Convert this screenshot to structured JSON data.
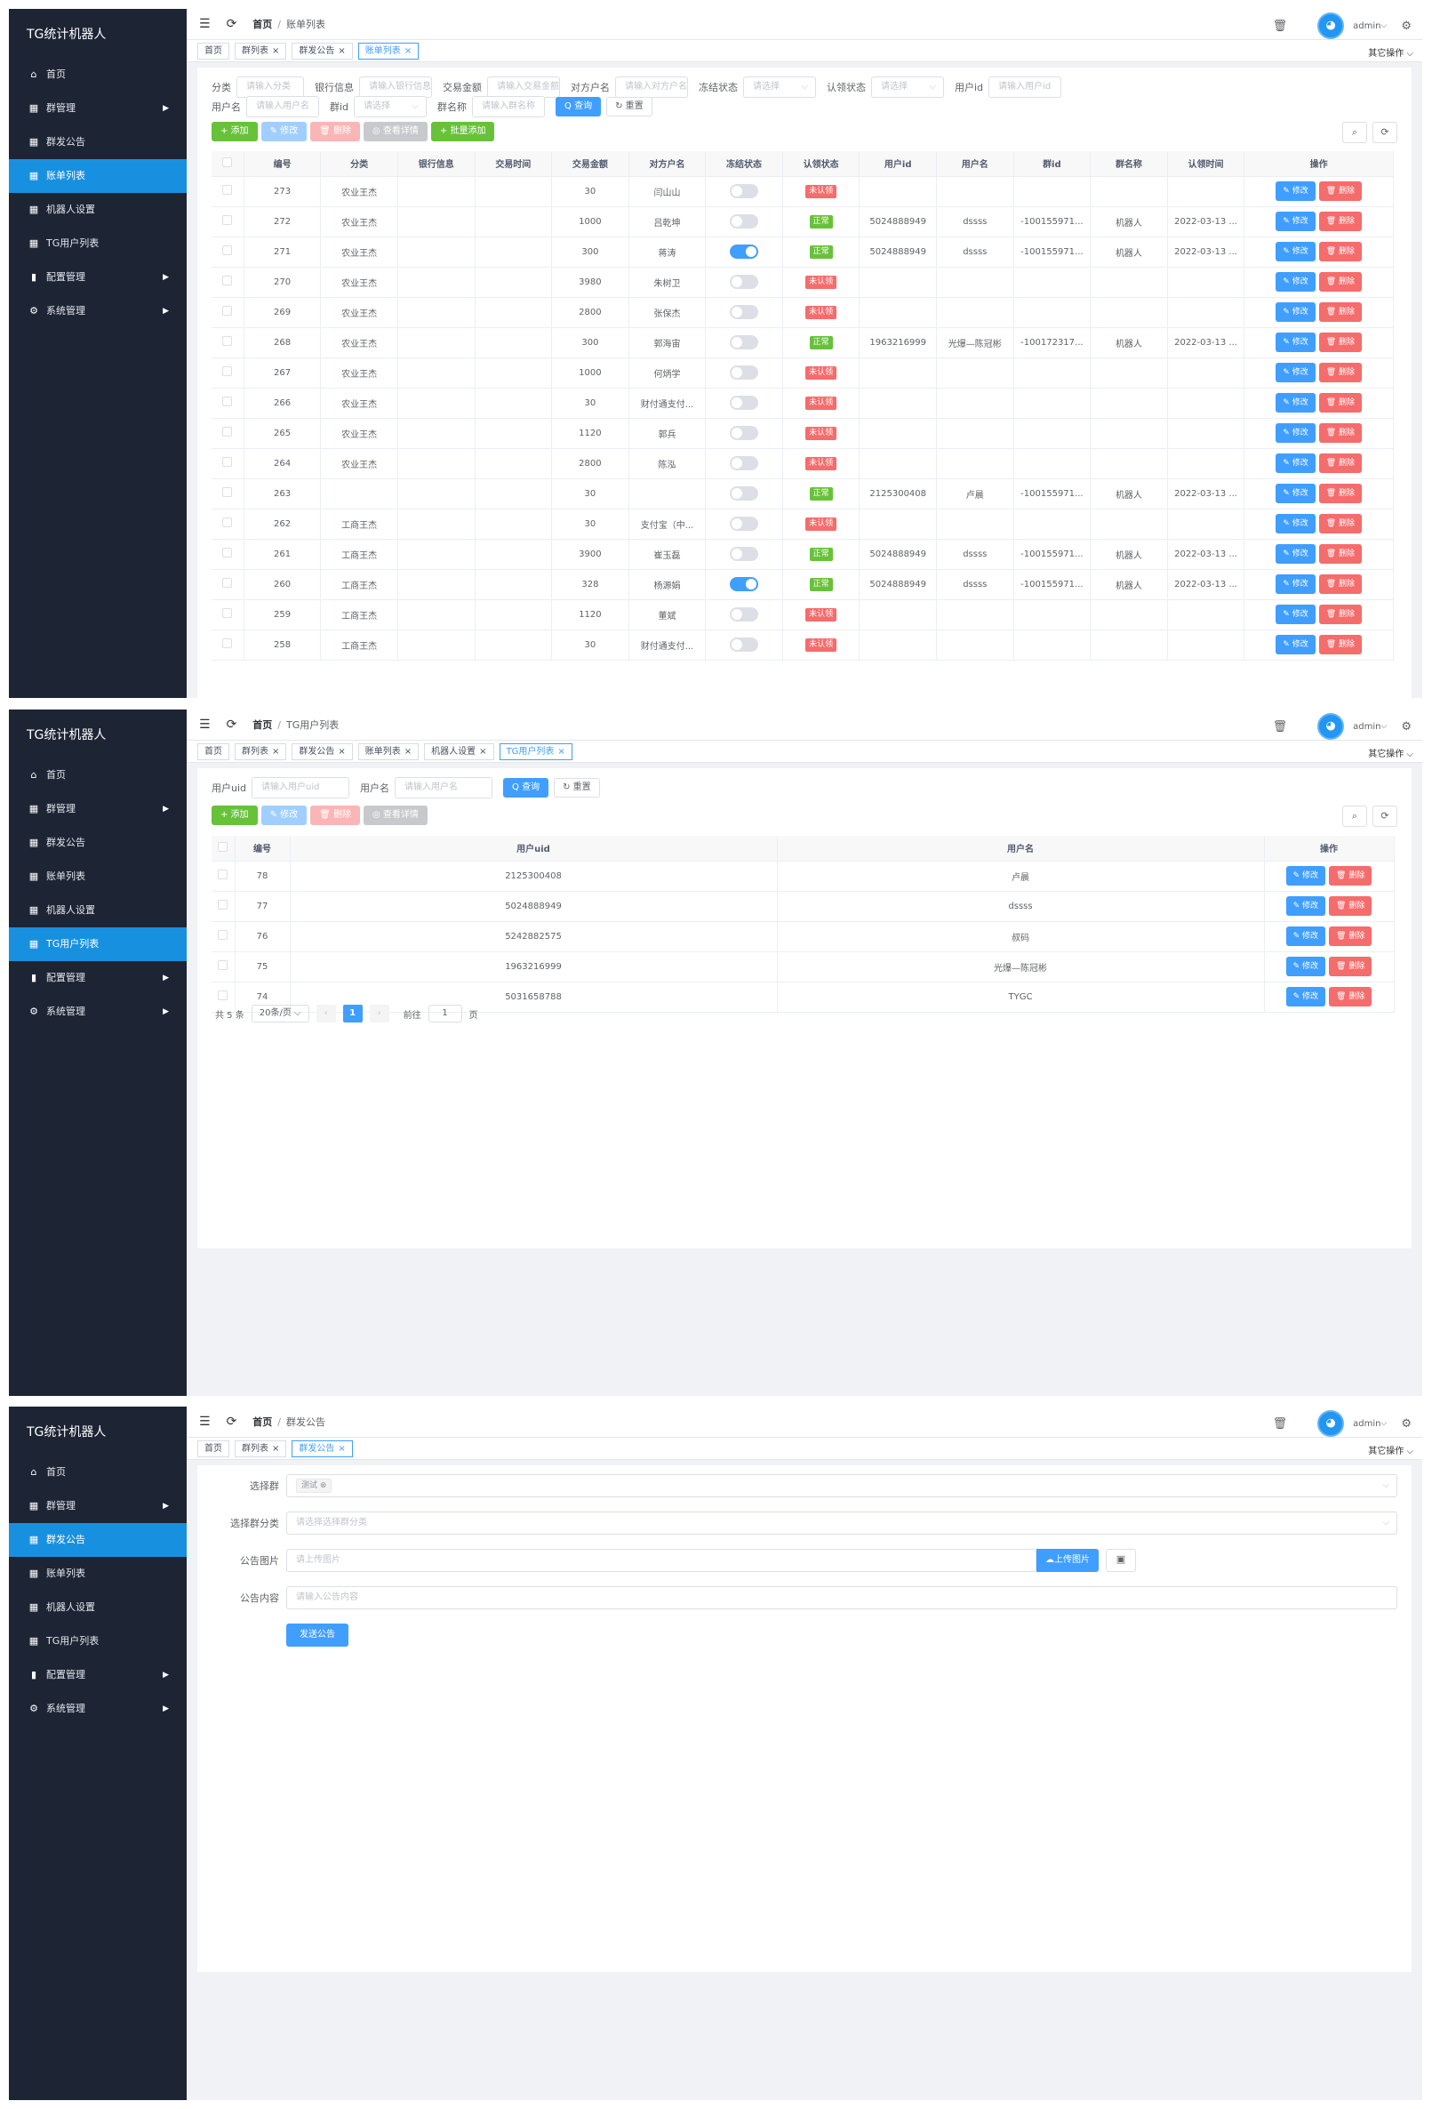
{
  "app_title": "TG统计机器人",
  "menu": [
    {
      "key": "home",
      "label": "首页",
      "icon": "home-icon",
      "glyph": "⌂",
      "arrow": false
    },
    {
      "key": "group",
      "label": "群管理",
      "icon": "grid-icon",
      "glyph": "▦",
      "arrow": true
    },
    {
      "key": "notice",
      "label": "群发公告",
      "icon": "grid-icon",
      "glyph": "▦",
      "arrow": false
    },
    {
      "key": "bill",
      "label": "账单列表",
      "icon": "grid-icon",
      "glyph": "▦",
      "arrow": false
    },
    {
      "key": "robot",
      "label": "机器人设置",
      "icon": "grid-icon",
      "glyph": "▦",
      "arrow": false
    },
    {
      "key": "tguser",
      "label": "TG用户列表",
      "icon": "grid-icon",
      "glyph": "▦",
      "arrow": false
    },
    {
      "key": "config",
      "label": "配置管理",
      "icon": "bar-chart-icon",
      "glyph": "▮",
      "arrow": true
    },
    {
      "key": "system",
      "label": "系统管理",
      "icon": "gear-icon",
      "glyph": "⚙",
      "arrow": true
    }
  ],
  "topbar": {
    "home": "首页",
    "sep": "/",
    "user": "admin",
    "user_arrow": "⌵"
  },
  "other_ops": "其它操作 ⌵",
  "panel1": {
    "crumb_current": "账单列表",
    "tags": [
      {
        "label": "首页",
        "closable": false,
        "active": false
      },
      {
        "label": "群列表",
        "closable": true,
        "active": false
      },
      {
        "label": "群发公告",
        "closable": true,
        "active": false
      },
      {
        "label": "账单列表",
        "closable": true,
        "active": true
      }
    ],
    "filters_row1": [
      {
        "label": "分类",
        "placeholder": "请输入分类",
        "w": 76,
        "select": false
      },
      {
        "label": "银行信息",
        "placeholder": "请输入银行信息",
        "w": 82,
        "select": false
      },
      {
        "label": "交易金额",
        "placeholder": "请输入交易金额",
        "w": 82,
        "select": false
      },
      {
        "label": "对方户名",
        "placeholder": "请输入对方户名",
        "w": 82,
        "select": false
      },
      {
        "label": "冻结状态",
        "placeholder": "请选择",
        "w": 82,
        "select": true
      },
      {
        "label": "认领状态",
        "placeholder": "请选择",
        "w": 82,
        "select": true
      },
      {
        "label": "用户id",
        "placeholder": "请输入用户id",
        "w": 82,
        "select": false
      }
    ],
    "filters_row2": [
      {
        "label": "用户名",
        "placeholder": "请输入用户名",
        "w": 82,
        "select": false
      },
      {
        "label": "群id",
        "placeholder": "请选择",
        "w": 82,
        "select": true
      },
      {
        "label": "群名称",
        "placeholder": "请输入群名称",
        "w": 82,
        "select": false
      }
    ],
    "search_btn": "Q 查询",
    "reset_btn": "↻ 重置",
    "toolbar": [
      {
        "label": "+ 添加",
        "cls": "green"
      },
      {
        "label": "✎ 修改",
        "cls": "blue-l"
      },
      {
        "label": "🗑 删除",
        "cls": "red-l"
      },
      {
        "label": "◎ 查看详情",
        "cls": "gray-l"
      },
      {
        "label": "+ 批量添加",
        "cls": "green"
      }
    ],
    "columns": [
      "",
      "编号",
      "分类",
      "银行信息",
      "交易时间",
      "交易金额",
      "对方户名",
      "冻结状态",
      "认领状态",
      "用户id",
      "用户名",
      "群id",
      "群名称",
      "认领时间",
      "操作"
    ],
    "rows": [
      [
        "273",
        "农业王杰",
        "",
        "",
        "30",
        "闫山山",
        false,
        "未认领",
        "",
        "",
        "",
        "",
        ""
      ],
      [
        "272",
        "农业王杰",
        "",
        "",
        "1000",
        "吕乾坤",
        false,
        "正常",
        "5024888949",
        "dssss",
        "-100155971...",
        "机器人",
        "2022-03-13 ..."
      ],
      [
        "271",
        "农业王杰",
        "",
        "",
        "300",
        "蒋涛",
        true,
        "正常",
        "5024888949",
        "dssss",
        "-100155971...",
        "机器人",
        "2022-03-13 ..."
      ],
      [
        "270",
        "农业王杰",
        "",
        "",
        "3980",
        "朱树卫",
        false,
        "未认领",
        "",
        "",
        "",
        "",
        ""
      ],
      [
        "269",
        "农业王杰",
        "",
        "",
        "2800",
        "张保杰",
        false,
        "未认领",
        "",
        "",
        "",
        "",
        ""
      ],
      [
        "268",
        "农业王杰",
        "",
        "",
        "300",
        "郭海宙",
        false,
        "正常",
        "1963216999",
        "光爆—陈冠彬",
        "-100172317...",
        "机器人",
        "2022-03-13 ..."
      ],
      [
        "267",
        "农业王杰",
        "",
        "",
        "1000",
        "何炳学",
        false,
        "未认领",
        "",
        "",
        "",
        "",
        ""
      ],
      [
        "266",
        "农业王杰",
        "",
        "",
        "30",
        "财付通支付...",
        false,
        "未认领",
        "",
        "",
        "",
        "",
        ""
      ],
      [
        "265",
        "农业王杰",
        "",
        "",
        "1120",
        "郭兵",
        false,
        "未认领",
        "",
        "",
        "",
        "",
        ""
      ],
      [
        "264",
        "农业王杰",
        "",
        "",
        "2800",
        "陈泓",
        false,
        "未认领",
        "",
        "",
        "",
        "",
        ""
      ],
      [
        "263",
        "",
        "",
        "",
        "30",
        "",
        false,
        "正常",
        "2125300408",
        "卢晨",
        "-100155971...",
        "机器人",
        "2022-03-13 ..."
      ],
      [
        "262",
        "工商王杰",
        "",
        "",
        "30",
        "支付宝（中...",
        false,
        "未认领",
        "",
        "",
        "",
        "",
        ""
      ],
      [
        "261",
        "工商王杰",
        "",
        "",
        "3900",
        "崔玉磊",
        false,
        "正常",
        "5024888949",
        "dssss",
        "-100155971...",
        "机器人",
        "2022-03-13 ..."
      ],
      [
        "260",
        "工商王杰",
        "",
        "",
        "328",
        "杨源娟",
        true,
        "正常",
        "5024888949",
        "dssss",
        "-100155971...",
        "机器人",
        "2022-03-13 ..."
      ],
      [
        "259",
        "工商王杰",
        "",
        "",
        "1120",
        "董斌",
        false,
        "未认领",
        "",
        "",
        "",
        "",
        ""
      ],
      [
        "258",
        "工商王杰",
        "",
        "",
        "30",
        "财付通支付...",
        false,
        "未认领",
        "",
        "",
        "",
        "",
        ""
      ]
    ],
    "op_edit": "✎ 修改",
    "op_del": "🗑 删除"
  },
  "panel2": {
    "crumb_current": "TG用户列表",
    "tags": [
      {
        "label": "首页",
        "closable": false,
        "active": false
      },
      {
        "label": "群列表",
        "closable": true,
        "active": false
      },
      {
        "label": "群发公告",
        "closable": true,
        "active": false
      },
      {
        "label": "账单列表",
        "closable": true,
        "active": false
      },
      {
        "label": "机器人设置",
        "closable": true,
        "active": false
      },
      {
        "label": "TG用户列表",
        "closable": true,
        "active": true
      }
    ],
    "filters": [
      {
        "label": "用户uid",
        "placeholder": "请输入用户uid",
        "w": 110,
        "select": false
      },
      {
        "label": "用户名",
        "placeholder": "请输入用户名",
        "w": 110,
        "select": false
      }
    ],
    "search_btn": "Q 查询",
    "reset_btn": "↻ 重置",
    "toolbar": [
      {
        "label": "+ 添加",
        "cls": "green"
      },
      {
        "label": "✎ 修改",
        "cls": "blue-l"
      },
      {
        "label": "🗑 删除",
        "cls": "red-l"
      },
      {
        "label": "◎ 查看详情",
        "cls": "gray-l"
      }
    ],
    "columns": [
      "",
      "编号",
      "用户uid",
      "用户名",
      "操作"
    ],
    "rows": [
      [
        "78",
        "2125300408",
        "卢晨"
      ],
      [
        "77",
        "5024888949",
        "dssss"
      ],
      [
        "76",
        "5242882575",
        "叔码"
      ],
      [
        "75",
        "1963216999",
        "光爆—陈冠彬"
      ],
      [
        "74",
        "5031658788",
        "TYGC"
      ]
    ],
    "op_edit": "✎ 修改",
    "op_del": "🗑 删除",
    "pager": {
      "total": "共 5 条",
      "size": "20条/页 ⌵",
      "prev": "‹",
      "page": "1",
      "next": "›",
      "goto": "前往",
      "goto_val": "1",
      "unit": "页"
    }
  },
  "panel3": {
    "crumb_current": "群发公告",
    "tags": [
      {
        "label": "首页",
        "closable": false,
        "active": false
      },
      {
        "label": "群列表",
        "closable": true,
        "active": false
      },
      {
        "label": "群发公告",
        "closable": true,
        "active": true
      }
    ],
    "select_group_label": "选择群",
    "select_group_chip": "测试 ⊗",
    "select_cat_label": "选择群分类",
    "select_cat_placeholder": "请选择选择群分类",
    "image_label": "公告图片",
    "image_placeholder": "请上传图片",
    "upload_btn": "☁上传图片",
    "content_label": "公告内容",
    "content_placeholder": "请输入公告内容",
    "send_btn": "发送公告"
  },
  "colors": {
    "sidebar": "#1d2434",
    "active": "#1890e0",
    "primary": "#409eff",
    "success": "#67c23a",
    "danger": "#f56c6c"
  }
}
